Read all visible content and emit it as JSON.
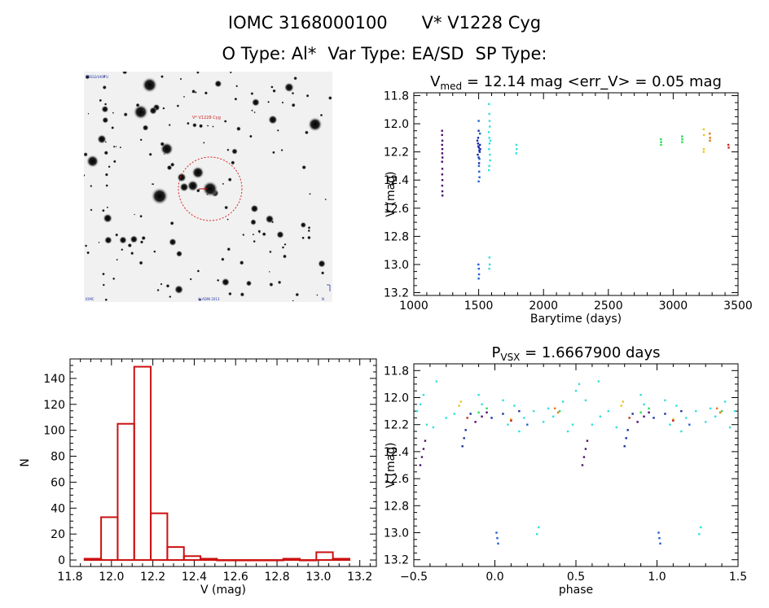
{
  "header": {
    "object_id": "IOMC 3168000100",
    "star_name": "V* V1228 Cyg",
    "o_type": "O Type: Al*",
    "var_type": "Var Type: EA/SD",
    "sp_type": "SP Type:"
  },
  "finder_chart": {
    "target_label": "V* V1228 Cyg",
    "corner_label_tl": "POSS2/UKSTU",
    "corner_label_bl": "IOMC",
    "corner_label_bc": "ALADIN 2013",
    "corner_label_br": "N"
  },
  "colors": {
    "histogram": "#cc1111",
    "circle": "#dd2222",
    "series": [
      "#4b0a6e",
      "#1a2aa8",
      "#1e5fd6",
      "#30e0e0",
      "#22dd55",
      "#22bb33",
      "#f0c419",
      "#e07a10",
      "#cc2a1a"
    ]
  },
  "chart_data": [
    {
      "id": "lightcurve",
      "type": "scatter",
      "title_prefix": "V",
      "title_sub": "med",
      "title_rest": " = 12.14 mag <err_V> = 0.05 mag",
      "xlabel": "Barytime (days)",
      "ylabel": "V (mag)",
      "xlim": [
        1000,
        3500
      ],
      "ylim": [
        13.22,
        11.78
      ],
      "xticks": [
        1000,
        1500,
        2000,
        2500,
        3000,
        3500
      ],
      "yticks": [
        11.8,
        12.0,
        12.2,
        12.4,
        12.6,
        12.8,
        13.0,
        13.2
      ],
      "series": [
        {
          "name": "s1",
          "color": "#4b0a6e",
          "points": [
            [
              1218,
              12.05
            ],
            [
              1218,
              12.08
            ],
            [
              1220,
              12.12
            ],
            [
              1218,
              12.15
            ],
            [
              1220,
              12.18
            ],
            [
              1219,
              12.21
            ],
            [
              1221,
              12.24
            ],
            [
              1218,
              12.27
            ],
            [
              1220,
              12.32
            ],
            [
              1219,
              12.36
            ],
            [
              1220,
              12.4
            ],
            [
              1219,
              12.44
            ],
            [
              1220,
              12.48
            ],
            [
              1221,
              12.51
            ]
          ]
        },
        {
          "name": "s2",
          "color": "#1a2aa8",
          "points": [
            [
              1490,
              12.12
            ],
            [
              1495,
              12.14
            ],
            [
              1498,
              12.16
            ],
            [
              1502,
              12.17
            ],
            [
              1505,
              12.19
            ],
            [
              1508,
              12.2
            ],
            [
              1493,
              12.22
            ],
            [
              1500,
              12.05
            ],
            [
              1496,
              12.1
            ],
            [
              1510,
              12.15
            ],
            [
              1512,
              12.18
            ],
            [
              1500,
              12.24
            ],
            [
              1503,
              12.28
            ]
          ]
        },
        {
          "name": "s3",
          "color": "#1e5fd6",
          "points": [
            [
              1500,
              11.98
            ],
            [
              1502,
              12.3
            ],
            [
              1504,
              12.34
            ],
            [
              1506,
              12.38
            ],
            [
              1500,
              12.41
            ],
            [
              1498,
              13.0
            ],
            [
              1501,
              13.03
            ],
            [
              1503,
              13.07
            ],
            [
              1500,
              13.1
            ],
            [
              1510,
              12.07
            ],
            [
              1506,
              12.25
            ]
          ]
        },
        {
          "name": "s4",
          "color": "#30e0e0",
          "points": [
            [
              1580,
              11.86
            ],
            [
              1582,
              11.93
            ],
            [
              1584,
              11.98
            ],
            [
              1586,
              12.02
            ],
            [
              1578,
              12.06
            ],
            [
              1582,
              12.1
            ],
            [
              1584,
              12.14
            ],
            [
              1580,
              12.18
            ],
            [
              1586,
              12.22
            ],
            [
              1588,
              12.26
            ],
            [
              1582,
              12.3
            ],
            [
              1579,
              12.33
            ],
            [
              1590,
              12.12
            ],
            [
              1583,
              12.95
            ],
            [
              1585,
              13.0
            ],
            [
              1582,
              13.03
            ],
            [
              1791,
              12.15
            ],
            [
              1793,
              12.18
            ],
            [
              1790,
              12.21
            ]
          ]
        },
        {
          "name": "s5",
          "color": "#22dd55",
          "points": [
            [
              2905,
              12.11
            ],
            [
              2907,
              12.13
            ],
            [
              2906,
              12.15
            ],
            [
              3068,
              12.09
            ],
            [
              3070,
              12.11
            ],
            [
              3069,
              12.13
            ]
          ]
        },
        {
          "name": "s6",
          "color": "#f0c419",
          "points": [
            [
              3235,
              12.04
            ],
            [
              3237,
              12.08
            ],
            [
              3236,
              12.18
            ],
            [
              3235,
              12.2
            ]
          ]
        },
        {
          "name": "s7",
          "color": "#e07a10",
          "points": [
            [
              3282,
              12.07
            ],
            [
              3284,
              12.1
            ],
            [
              3283,
              12.12
            ]
          ]
        },
        {
          "name": "s8",
          "color": "#cc2a1a",
          "points": [
            [
              3425,
              12.15
            ],
            [
              3428,
              12.17
            ]
          ]
        }
      ]
    },
    {
      "id": "histogram",
      "type": "bar",
      "xlabel": "V (mag)",
      "ylabel": "N",
      "xlim": [
        11.8,
        13.28
      ],
      "ylim": [
        -5,
        155
      ],
      "xticks": [
        11.8,
        12.0,
        12.2,
        12.4,
        12.6,
        12.8,
        13.0,
        13.2
      ],
      "yticks": [
        0,
        20,
        40,
        60,
        80,
        100,
        120,
        140
      ],
      "bin_starts": [
        11.87,
        11.95,
        12.03,
        12.11,
        12.19,
        12.27,
        12.35,
        12.43,
        12.51,
        12.59,
        12.67,
        12.75,
        12.83,
        12.91,
        12.99,
        13.07
      ],
      "bin_width": 0.08,
      "counts": [
        1,
        33,
        105,
        149,
        36,
        10,
        3,
        1,
        0,
        0,
        0,
        0,
        1,
        0,
        6,
        1
      ]
    },
    {
      "id": "phased",
      "type": "scatter",
      "title_prefix": "P",
      "title_sub": "VSX",
      "title_rest": " = 1.6667900 days",
      "xlabel": "phase",
      "ylabel": "V (mag)",
      "xlim": [
        -0.5,
        1.5
      ],
      "ylim": [
        13.25,
        11.75
      ],
      "xticks": [
        -0.5,
        0.0,
        0.5,
        1.0,
        1.5
      ],
      "xtick_labels": [
        "−0.5",
        "0.0",
        "0.5",
        "1.0",
        "1.5"
      ],
      "yticks": [
        11.8,
        12.0,
        12.2,
        12.4,
        12.6,
        12.8,
        13.0,
        13.2
      ],
      "series": [
        {
          "name": "s1",
          "color": "#4b0a6e",
          "points": [
            [
              -0.46,
              12.5
            ],
            [
              -0.45,
              12.44
            ],
            [
              -0.44,
              12.38
            ],
            [
              -0.43,
              12.32
            ],
            [
              0.54,
              12.5
            ],
            [
              0.55,
              12.44
            ],
            [
              0.56,
              12.38
            ],
            [
              0.57,
              12.32
            ],
            [
              -0.08,
              12.14
            ],
            [
              -0.05,
              12.11
            ],
            [
              -0.12,
              12.18
            ],
            [
              0.92,
              12.14
            ],
            [
              0.95,
              12.11
            ],
            [
              0.88,
              12.18
            ]
          ]
        },
        {
          "name": "s2",
          "color": "#1a2aa8",
          "points": [
            [
              -0.2,
              12.36
            ],
            [
              -0.19,
              12.3
            ],
            [
              -0.18,
              12.24
            ],
            [
              0.8,
              12.36
            ],
            [
              0.81,
              12.3
            ],
            [
              0.82,
              12.24
            ],
            [
              -0.02,
              12.15
            ],
            [
              0.05,
              12.12
            ],
            [
              0.1,
              12.17
            ],
            [
              0.15,
              12.1
            ],
            [
              -0.15,
              12.12
            ],
            [
              0.98,
              12.15
            ],
            [
              1.05,
              12.12
            ],
            [
              1.1,
              12.17
            ],
            [
              1.15,
              12.1
            ],
            [
              0.85,
              12.12
            ]
          ]
        },
        {
          "name": "s3",
          "color": "#1e5fd6",
          "points": [
            [
              0.01,
              13.0
            ],
            [
              0.015,
              13.04
            ],
            [
              0.02,
              13.08
            ],
            [
              1.01,
              13.0
            ],
            [
              1.015,
              13.04
            ],
            [
              1.02,
              13.08
            ],
            [
              0.2,
              12.2
            ],
            [
              1.2,
              12.2
            ]
          ]
        },
        {
          "name": "s4",
          "color": "#30e0e0",
          "points": [
            [
              -0.48,
              12.1
            ],
            [
              -0.46,
              12.05
            ],
            [
              -0.44,
              11.98
            ],
            [
              -0.42,
              12.2
            ],
            [
              -0.38,
              12.22
            ],
            [
              -0.3,
              12.15
            ],
            [
              -0.25,
              12.12
            ],
            [
              -0.1,
              11.98
            ],
            [
              -0.08,
              12.05
            ],
            [
              0.05,
              12.02
            ],
            [
              0.08,
              12.2
            ],
            [
              0.12,
              12.06
            ],
            [
              0.15,
              12.25
            ],
            [
              0.18,
              12.15
            ],
            [
              0.24,
              12.1
            ],
            [
              0.27,
              12.96
            ],
            [
              0.26,
              13.01
            ],
            [
              0.3,
              12.18
            ],
            [
              0.33,
              12.08
            ],
            [
              0.36,
              12.14
            ],
            [
              0.42,
              12.03
            ],
            [
              0.45,
              12.25
            ],
            [
              0.48,
              12.2
            ],
            [
              0.5,
              11.95
            ],
            [
              0.52,
              11.9
            ],
            [
              0.56,
              12.02
            ],
            [
              0.6,
              12.2
            ],
            [
              0.65,
              12.14
            ],
            [
              0.7,
              12.1
            ],
            [
              0.75,
              12.22
            ],
            [
              0.9,
              11.98
            ],
            [
              0.92,
              12.05
            ],
            [
              1.05,
              12.02
            ],
            [
              1.08,
              12.2
            ],
            [
              1.12,
              12.06
            ],
            [
              1.15,
              12.25
            ],
            [
              1.18,
              12.15
            ],
            [
              1.24,
              12.1
            ],
            [
              1.27,
              12.96
            ],
            [
              1.26,
              13.01
            ],
            [
              1.3,
              12.18
            ],
            [
              1.33,
              12.08
            ],
            [
              1.36,
              12.14
            ],
            [
              1.42,
              12.03
            ],
            [
              1.45,
              12.22
            ],
            [
              1.48,
              12.1
            ],
            [
              -0.36,
              11.88
            ],
            [
              0.64,
              11.88
            ]
          ]
        },
        {
          "name": "s5",
          "color": "#22dd55",
          "points": [
            [
              -0.1,
              12.11
            ],
            [
              -0.05,
              12.08
            ],
            [
              0.4,
              12.1
            ],
            [
              0.9,
              12.11
            ],
            [
              0.95,
              12.08
            ],
            [
              1.4,
              12.1
            ]
          ]
        },
        {
          "name": "s6",
          "color": "#f0c419",
          "points": [
            [
              -0.22,
              12.06
            ],
            [
              -0.21,
              12.03
            ],
            [
              0.78,
              12.06
            ],
            [
              0.79,
              12.03
            ],
            [
              0.1,
              12.16
            ],
            [
              1.1,
              12.16
            ]
          ]
        },
        {
          "name": "s7",
          "color": "#e07a10",
          "points": [
            [
              0.37,
              12.08
            ],
            [
              0.39,
              12.11
            ],
            [
              1.37,
              12.08
            ],
            [
              1.39,
              12.11
            ]
          ]
        },
        {
          "name": "s8",
          "color": "#cc2a1a",
          "points": [
            [
              -0.17,
              12.15
            ],
            [
              0.1,
              12.17
            ],
            [
              0.83,
              12.15
            ],
            [
              1.1,
              12.17
            ]
          ]
        }
      ]
    }
  ]
}
